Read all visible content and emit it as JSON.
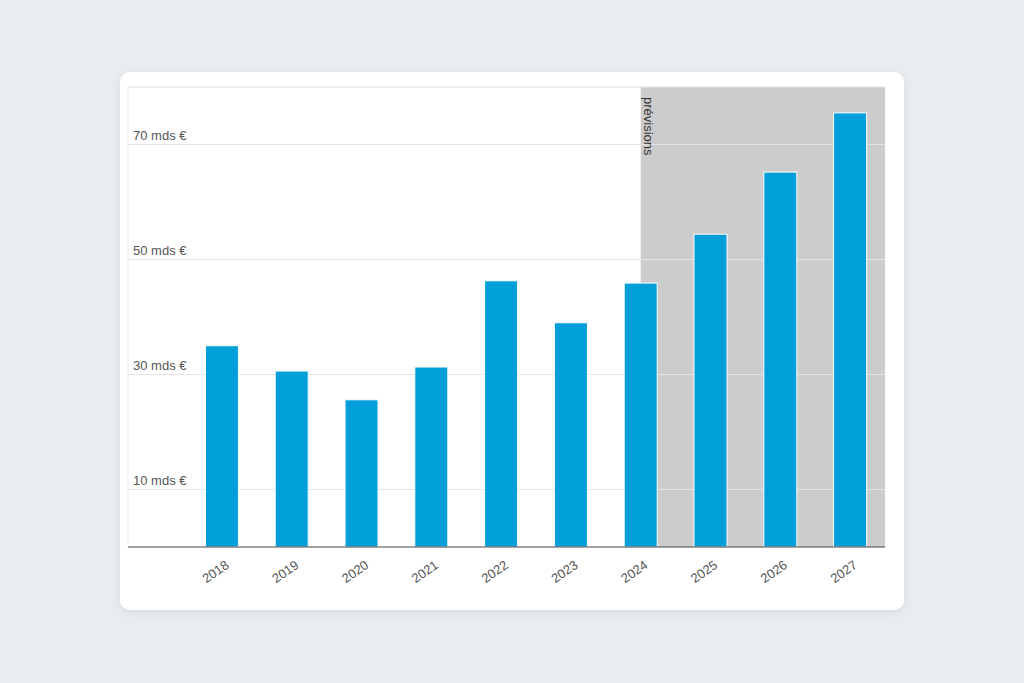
{
  "chart_data": {
    "type": "bar",
    "categories": [
      "2018",
      "2019",
      "2020",
      "2021",
      "2022",
      "2023",
      "2024",
      "2025",
      "2026",
      "2027"
    ],
    "values": [
      35,
      30.6,
      25.6,
      31.3,
      46.3,
      39,
      45.9,
      54.4,
      65.2,
      75.5
    ],
    "color": "#009fda",
    "ylim": [
      0,
      80
    ],
    "yticks": [
      {
        "value": 10,
        "label": "10 mds €"
      },
      {
        "value": 30,
        "label": "30 mds €"
      },
      {
        "value": 50,
        "label": "50 mds €"
      },
      {
        "value": 70,
        "label": "70 mds €"
      }
    ],
    "grid": true,
    "annotations": [
      {
        "text": "prévisions",
        "x": "2024"
      }
    ]
  }
}
